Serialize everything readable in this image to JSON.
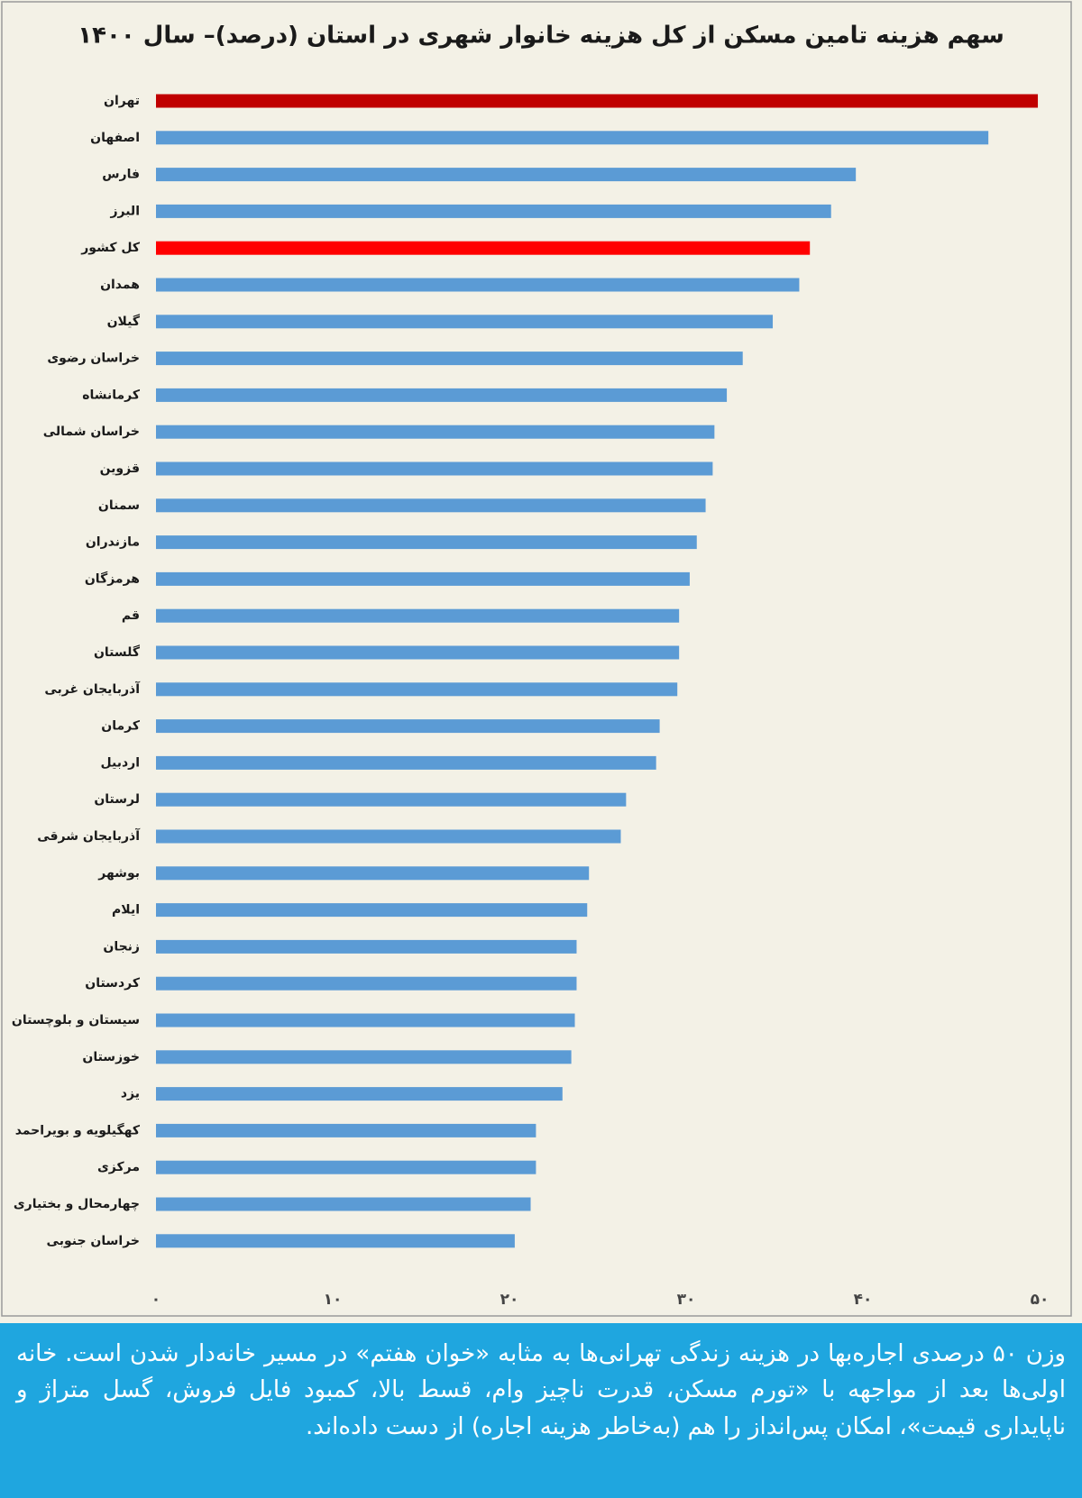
{
  "chart_data": {
    "type": "barh",
    "title": "سهم هزینه تامین مسکن از کل هزینه خانوار شهری در استان (درصد)– سال ۱۴۰۰",
    "categories": [
      "تهران",
      "اصفهان",
      "فارس",
      "البرز",
      "کل کشور",
      "همدان",
      "گیلان",
      "خراسان رضوی",
      "کرمانشاه",
      "خراسان شمالی",
      "قزوین",
      "سمنان",
      "مازندران",
      "هرمزگان",
      "قم",
      "گلستان",
      "آذربایجان غربی",
      "کرمان",
      "اردبیل",
      "لرستان",
      "آذربایجان شرقی",
      "بوشهر",
      "ایلام",
      "زنجان",
      "کردستان",
      "سیستان و بلوچستان",
      "خوزستان",
      "یزد",
      "کهگیلویه و بویراحمد",
      "مرکزی",
      "چهارمحال و بختیاری",
      "خراسان جنوبی"
    ],
    "values": [
      49.9,
      47.1,
      39.6,
      38.2,
      37.0,
      36.4,
      34.9,
      33.2,
      32.3,
      31.6,
      31.5,
      31.1,
      30.6,
      30.2,
      29.6,
      29.6,
      29.5,
      28.5,
      28.3,
      26.6,
      26.3,
      24.5,
      24.4,
      23.8,
      23.8,
      23.7,
      23.5,
      23.0,
      21.5,
      21.5,
      21.2,
      20.3
    ],
    "colors": [
      "#c00000",
      "#5b9bd5",
      "#5b9bd5",
      "#5b9bd5",
      "#ff0000",
      "#5b9bd5",
      "#5b9bd5",
      "#5b9bd5",
      "#5b9bd5",
      "#5b9bd5",
      "#5b9bd5",
      "#5b9bd5",
      "#5b9bd5",
      "#5b9bd5",
      "#5b9bd5",
      "#5b9bd5",
      "#5b9bd5",
      "#5b9bd5",
      "#5b9bd5",
      "#5b9bd5",
      "#5b9bd5",
      "#5b9bd5",
      "#5b9bd5",
      "#5b9bd5",
      "#5b9bd5",
      "#5b9bd5",
      "#5b9bd5",
      "#5b9bd5",
      "#5b9bd5",
      "#5b9bd5",
      "#5b9bd5",
      "#5b9bd5"
    ],
    "xlim": [
      0,
      50
    ],
    "xticks": [
      {
        "value": 0,
        "label": "۰"
      },
      {
        "value": 10,
        "label": "۱۰"
      },
      {
        "value": 20,
        "label": "۲۰"
      },
      {
        "value": 30,
        "label": "۳۰"
      },
      {
        "value": 40,
        "label": "۴۰"
      },
      {
        "value": 50,
        "label": "۵۰"
      }
    ]
  },
  "caption": "وزن ۵۰ درصدی اجاره‌بها در هزینه زندگی تهرانی‌ها به مثابه «خوان هفتم» در مسیر خانه‌دار شدن است. خانه اولی‌ها بعد از مواجهه با «تورم مسکن، قدرت ناچیز وام، قسط بالا، کمبود فایل فروش، گسل متراژ و ناپایداری قیمت»، امکان پس‌انداز را هم (به‌خاطر هزینه اجاره) از دست داده‌اند."
}
